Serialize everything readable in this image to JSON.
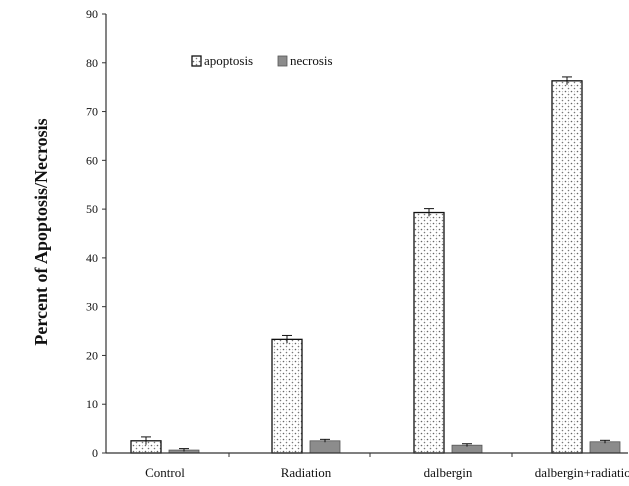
{
  "chart_data": {
    "type": "bar",
    "title": "",
    "xlabel": "",
    "ylabel": "Percent of Apoptosis/Necrosis",
    "ylim": [
      0,
      90
    ],
    "yticks": [
      0,
      10,
      20,
      30,
      40,
      50,
      60,
      70,
      80,
      90
    ],
    "grid": false,
    "legend_position": "top-left",
    "categories": [
      "Control",
      "Radiation",
      "dalbergin",
      "dalbergin+radiation"
    ],
    "series": [
      {
        "name": "apoptosis",
        "values": [
          2.5,
          23.3,
          49.3,
          76.3
        ],
        "errors": [
          0.8,
          0.8,
          0.8,
          0.8
        ],
        "pattern": "dotted",
        "color": "#ffffff"
      },
      {
        "name": "necrosis",
        "values": [
          0.6,
          2.5,
          1.6,
          2.3
        ],
        "errors": [
          0.3,
          0.3,
          0.3,
          0.3
        ],
        "pattern": "solid",
        "color": "#8c8c8c"
      }
    ]
  }
}
